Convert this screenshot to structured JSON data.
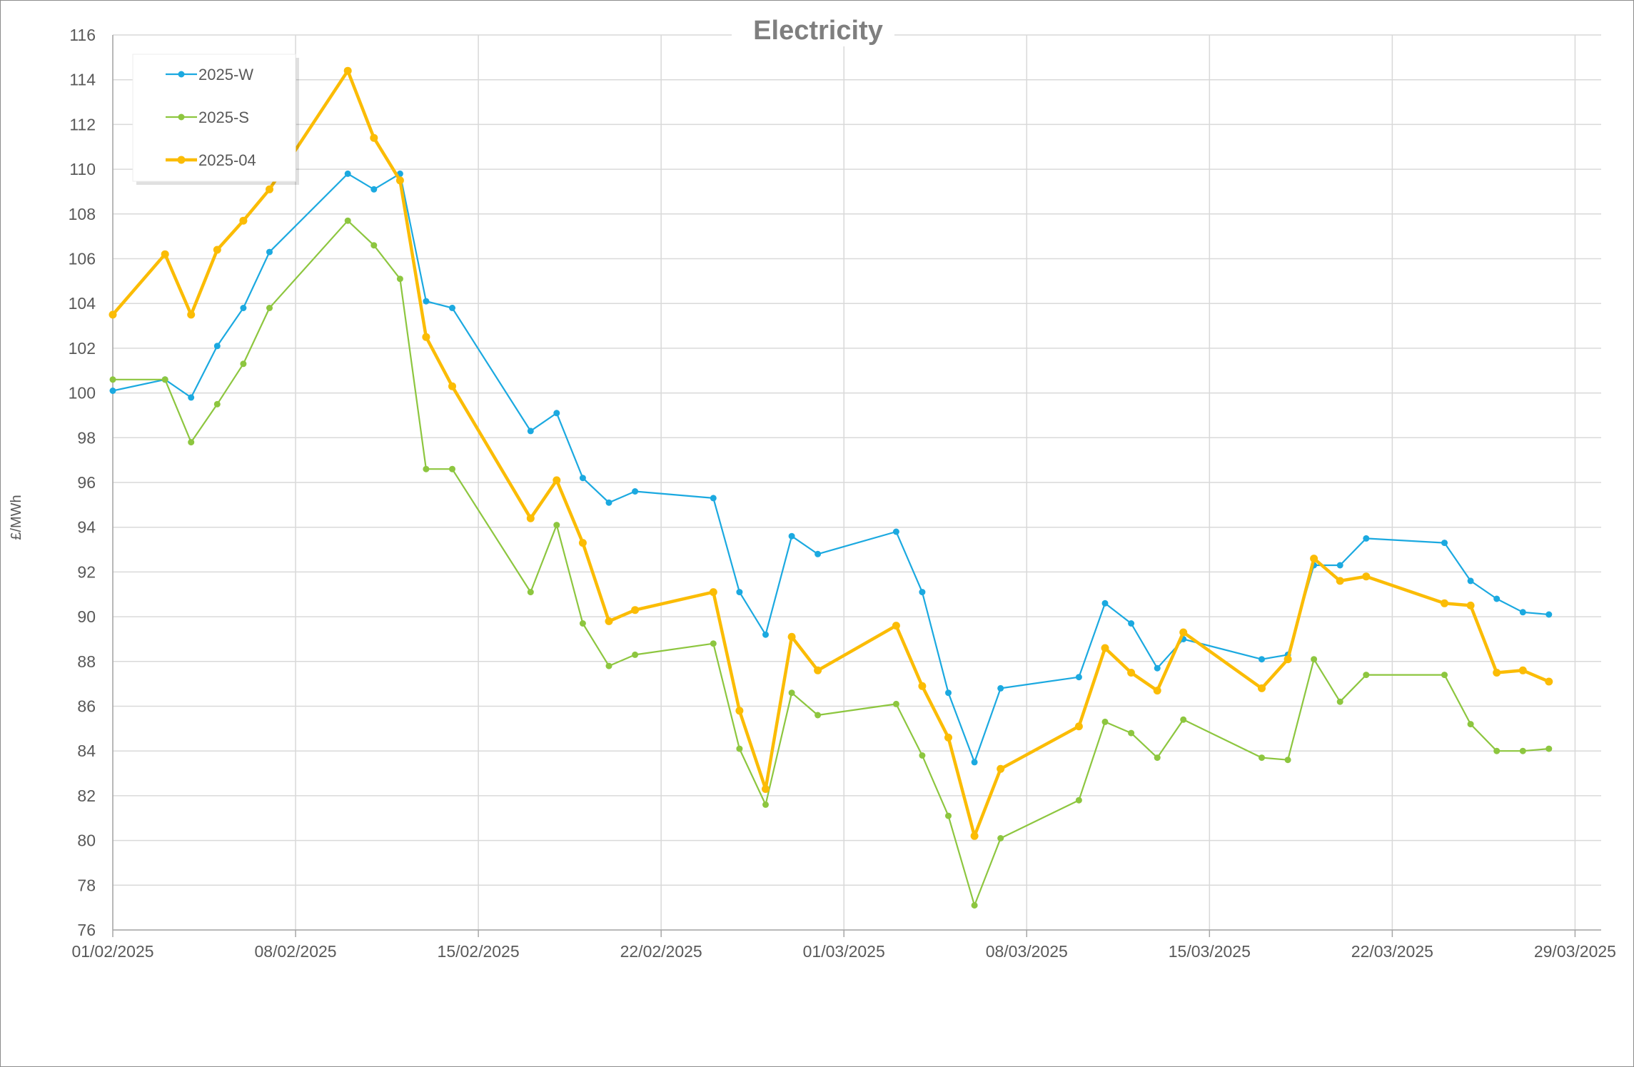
{
  "chart_data": {
    "type": "line",
    "title": "Electricity",
    "ylabel": "£/MWh",
    "xlabel": "",
    "ylim": [
      76,
      116
    ],
    "y_tick_step": 2,
    "x_range": [
      "2025-02-01",
      "2025-03-30"
    ],
    "x_tick_dates": [
      "2025-02-01",
      "2025-02-08",
      "2025-02-15",
      "2025-02-22",
      "2025-03-01",
      "2025-03-08",
      "2025-03-15",
      "2025-03-22",
      "2025-03-29"
    ],
    "x_tick_labels": [
      "01/02/2025",
      "08/02/2025",
      "15/02/2025",
      "22/02/2025",
      "01/03/2025",
      "08/03/2025",
      "15/03/2025",
      "22/03/2025",
      "29/03/2025"
    ],
    "grid": true,
    "legend_position": "top-left",
    "x": [
      "2025-02-01",
      "2025-02-03",
      "2025-02-04",
      "2025-02-05",
      "2025-02-06",
      "2025-02-07",
      "2025-02-10",
      "2025-02-11",
      "2025-02-12",
      "2025-02-13",
      "2025-02-14",
      "2025-02-17",
      "2025-02-18",
      "2025-02-19",
      "2025-02-20",
      "2025-02-21",
      "2025-02-24",
      "2025-02-25",
      "2025-02-26",
      "2025-02-27",
      "2025-02-28",
      "2025-03-03",
      "2025-03-04",
      "2025-03-05",
      "2025-03-06",
      "2025-03-07",
      "2025-03-10",
      "2025-03-11",
      "2025-03-12",
      "2025-03-13",
      "2025-03-14",
      "2025-03-17",
      "2025-03-18",
      "2025-03-19",
      "2025-03-20",
      "2025-03-21",
      "2025-03-24",
      "2025-03-25",
      "2025-03-26",
      "2025-03-27",
      "2025-03-28"
    ],
    "series": [
      {
        "name": "2025-W",
        "color": "#1ba9e0",
        "line_width": 2.2,
        "marker_radius": 4.5,
        "values": [
          100.1,
          100.6,
          99.8,
          102.1,
          103.8,
          106.3,
          109.8,
          109.1,
          109.8,
          104.1,
          103.8,
          98.3,
          99.1,
          96.2,
          95.1,
          95.6,
          95.3,
          91.1,
          89.2,
          93.6,
          92.8,
          93.8,
          91.1,
          86.6,
          83.5,
          86.8,
          87.3,
          90.6,
          89.7,
          87.7,
          89.0,
          88.1,
          88.3,
          92.3,
          92.3,
          93.5,
          93.3,
          91.6,
          90.8,
          90.2,
          90.1
        ]
      },
      {
        "name": "2025-S",
        "color": "#8dc63f",
        "line_width": 2.2,
        "marker_radius": 4.5,
        "values": [
          100.6,
          100.6,
          97.8,
          99.5,
          101.3,
          103.8,
          107.7,
          106.6,
          105.1,
          96.6,
          96.6,
          91.1,
          94.1,
          89.7,
          87.8,
          88.3,
          88.8,
          84.1,
          81.6,
          86.6,
          85.6,
          86.1,
          83.8,
          81.1,
          77.1,
          80.1,
          81.8,
          85.3,
          84.8,
          83.7,
          85.4,
          83.7,
          83.6,
          88.1,
          86.2,
          87.4,
          87.4,
          85.2,
          84.0,
          84.0,
          84.1
        ]
      },
      {
        "name": "2025-04",
        "color": "#fbbc05",
        "line_width": 4.5,
        "marker_radius": 5.5,
        "values": [
          103.5,
          106.2,
          103.5,
          106.4,
          107.7,
          109.1,
          114.4,
          111.4,
          109.5,
          102.5,
          100.3,
          94.4,
          96.1,
          93.3,
          89.8,
          90.3,
          91.1,
          85.8,
          82.3,
          89.1,
          87.6,
          89.6,
          86.9,
          84.6,
          80.2,
          83.2,
          85.1,
          88.6,
          87.5,
          86.7,
          89.3,
          86.8,
          88.1,
          92.6,
          91.6,
          91.8,
          90.6,
          90.5,
          87.5,
          87.6,
          87.1
        ]
      }
    ]
  }
}
